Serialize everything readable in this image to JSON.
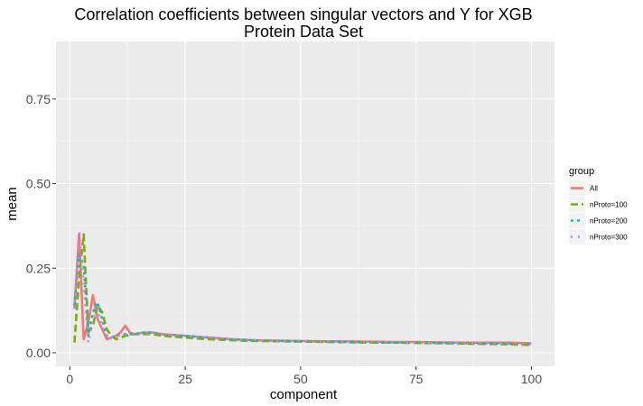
{
  "chart_data": {
    "type": "line",
    "title_line1": "Correlation coefficients between singular vectors and Y for XGB",
    "title_line2": "Protein Data Set",
    "xlabel": "component",
    "ylabel": "mean",
    "xlim": [
      -3,
      105
    ],
    "ylim": [
      -0.04,
      0.92
    ],
    "x_ticks": [
      0,
      25,
      50,
      75,
      100
    ],
    "x_tick_labels": [
      "0",
      "25",
      "50",
      "75",
      "100"
    ],
    "y_ticks": [
      0.0,
      0.25,
      0.5,
      0.75
    ],
    "y_tick_labels": [
      "0.00",
      "0.25",
      "0.50",
      "0.75"
    ],
    "grid": true,
    "legend": {
      "title": "group",
      "position": "right"
    },
    "series": [
      {
        "name": "All",
        "color": "#F8766D",
        "dash": "none",
        "points": [
          [
            1,
            0.13
          ],
          [
            2,
            0.35
          ],
          [
            3,
            0.04
          ],
          [
            4,
            0.09
          ],
          [
            5,
            0.17
          ],
          [
            6,
            0.1
          ],
          [
            7,
            0.07
          ],
          [
            8,
            0.04
          ],
          [
            9,
            0.045
          ],
          [
            10,
            0.05
          ],
          [
            11,
            0.06
          ],
          [
            12,
            0.08
          ],
          [
            13,
            0.06
          ],
          [
            14,
            0.055
          ],
          [
            16,
            0.06
          ],
          [
            18,
            0.06
          ],
          [
            20,
            0.055
          ],
          [
            25,
            0.05
          ],
          [
            30,
            0.045
          ],
          [
            35,
            0.04
          ],
          [
            40,
            0.037
          ],
          [
            45,
            0.036
          ],
          [
            50,
            0.035
          ],
          [
            55,
            0.034
          ],
          [
            60,
            0.034
          ],
          [
            65,
            0.033
          ],
          [
            70,
            0.032
          ],
          [
            75,
            0.032
          ],
          [
            80,
            0.031
          ],
          [
            85,
            0.03
          ],
          [
            90,
            0.03
          ],
          [
            95,
            0.03
          ],
          [
            100,
            0.028
          ]
        ]
      },
      {
        "name": "nProto=100",
        "color": "#7CAE00",
        "dash": "8,4",
        "points": [
          [
            1,
            0.03
          ],
          [
            2,
            0.22
          ],
          [
            3,
            0.35
          ],
          [
            4,
            0.06
          ],
          [
            5,
            0.08
          ],
          [
            6,
            0.14
          ],
          [
            7,
            0.12
          ],
          [
            8,
            0.07
          ],
          [
            9,
            0.05
          ],
          [
            10,
            0.04
          ],
          [
            12,
            0.05
          ],
          [
            14,
            0.055
          ],
          [
            16,
            0.055
          ],
          [
            18,
            0.055
          ],
          [
            20,
            0.05
          ],
          [
            25,
            0.045
          ],
          [
            30,
            0.04
          ],
          [
            35,
            0.037
          ],
          [
            40,
            0.035
          ],
          [
            45,
            0.034
          ],
          [
            50,
            0.033
          ],
          [
            55,
            0.032
          ],
          [
            60,
            0.031
          ],
          [
            65,
            0.03
          ],
          [
            70,
            0.03
          ],
          [
            75,
            0.029
          ],
          [
            80,
            0.028
          ],
          [
            85,
            0.027
          ],
          [
            90,
            0.026
          ],
          [
            95,
            0.025
          ],
          [
            100,
            0.023
          ]
        ]
      },
      {
        "name": "nProto=200",
        "color": "#00BFC4",
        "dash": "3,4",
        "points": [
          [
            1,
            0.14
          ],
          [
            2,
            0.29
          ],
          [
            3,
            0.26
          ],
          [
            4,
            0.05
          ],
          [
            5,
            0.12
          ],
          [
            6,
            0.15
          ],
          [
            7,
            0.1
          ],
          [
            8,
            0.05
          ],
          [
            9,
            0.045
          ],
          [
            10,
            0.05
          ],
          [
            12,
            0.055
          ],
          [
            14,
            0.055
          ],
          [
            16,
            0.06
          ],
          [
            18,
            0.06
          ],
          [
            20,
            0.055
          ],
          [
            25,
            0.05
          ],
          [
            30,
            0.045
          ],
          [
            35,
            0.04
          ],
          [
            40,
            0.037
          ],
          [
            45,
            0.035
          ],
          [
            50,
            0.034
          ],
          [
            55,
            0.033
          ],
          [
            60,
            0.032
          ],
          [
            65,
            0.031
          ],
          [
            70,
            0.03
          ],
          [
            75,
            0.03
          ],
          [
            80,
            0.029
          ],
          [
            85,
            0.028
          ],
          [
            90,
            0.027
          ],
          [
            95,
            0.027
          ],
          [
            100,
            0.026
          ]
        ]
      },
      {
        "name": "nProto=300",
        "color": "#C77CFF",
        "dash": "2,6",
        "points": [
          [
            1,
            0.13
          ],
          [
            2,
            0.36
          ],
          [
            3,
            0.2
          ],
          [
            4,
            0.03
          ],
          [
            5,
            0.1
          ],
          [
            6,
            0.13
          ],
          [
            7,
            0.08
          ],
          [
            8,
            0.045
          ],
          [
            9,
            0.045
          ],
          [
            10,
            0.05
          ],
          [
            12,
            0.055
          ],
          [
            14,
            0.055
          ],
          [
            16,
            0.06
          ],
          [
            18,
            0.058
          ],
          [
            20,
            0.055
          ],
          [
            25,
            0.05
          ],
          [
            30,
            0.045
          ],
          [
            35,
            0.04
          ],
          [
            40,
            0.037
          ],
          [
            45,
            0.035
          ],
          [
            50,
            0.034
          ],
          [
            55,
            0.033
          ],
          [
            60,
            0.032
          ],
          [
            65,
            0.031
          ],
          [
            70,
            0.03
          ],
          [
            75,
            0.03
          ],
          [
            80,
            0.029
          ],
          [
            85,
            0.028
          ],
          [
            90,
            0.028
          ],
          [
            95,
            0.027
          ],
          [
            100,
            0.026
          ]
        ]
      }
    ]
  }
}
